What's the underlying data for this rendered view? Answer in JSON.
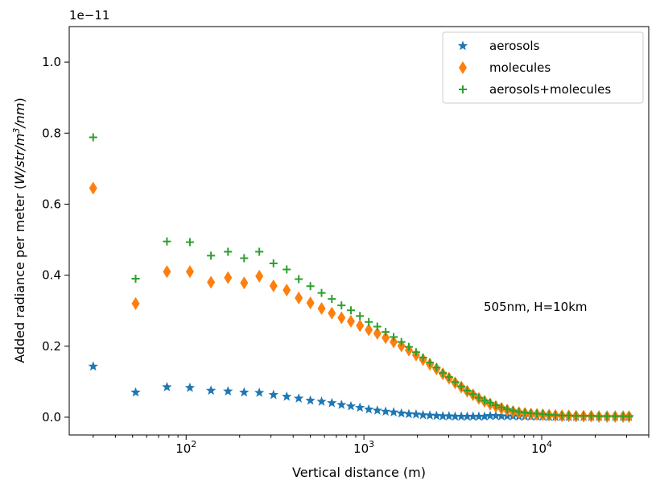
{
  "chart_data": {
    "type": "scatter",
    "xscale": "log",
    "xlabel": "Vertical distance (m)",
    "ylabel_main": "Added radiance per meter (",
    "ylabel_math": "W/str/m",
    "ylabel_exp": "3",
    "ylabel_math2": "/nm",
    "ylabel_close": ")",
    "offset_text": "1e−11",
    "annotation": "505nm, H=10km",
    "xlim": [
      22,
      40000
    ],
    "ylim": [
      -0.05,
      1.1
    ],
    "yticks": [
      0.0,
      0.2,
      0.4,
      0.6,
      0.8,
      1.0
    ],
    "ytick_labels": [
      "0.0",
      "0.2",
      "0.4",
      "0.6",
      "0.8",
      "1.0"
    ],
    "xticks": [
      100,
      1000,
      10000
    ],
    "xtick_base": [
      "10",
      "10",
      "10"
    ],
    "xtick_exp": [
      "2",
      "3",
      "4"
    ],
    "legend_position": "top-right",
    "grid": false,
    "x": [
      30,
      52,
      78,
      105,
      138,
      172,
      212,
      258,
      310,
      368,
      430,
      500,
      578,
      660,
      748,
      845,
      950,
      1065,
      1190,
      1325,
      1470,
      1625,
      1790,
      1965,
      2150,
      2350,
      2560,
      2780,
      3010,
      3260,
      3530,
      3810,
      4110,
      4430,
      4770,
      5130,
      5520,
      5940,
      6400,
      6900,
      7450,
      8050,
      8700,
      9400,
      10150,
      11000,
      11950,
      13000,
      14200,
      15600,
      17200,
      19000,
      21000,
      23300,
      25900,
      28700,
      31000
    ],
    "series": [
      {
        "name": "aerosols",
        "marker": "star",
        "color": "#1f77b4",
        "values": [
          0.143,
          0.07,
          0.085,
          0.083,
          0.075,
          0.073,
          0.07,
          0.069,
          0.063,
          0.058,
          0.053,
          0.047,
          0.044,
          0.04,
          0.035,
          0.031,
          0.027,
          0.022,
          0.019,
          0.016,
          0.014,
          0.011,
          0.009,
          0.008,
          0.006,
          0.005,
          0.004,
          0.003,
          0.003,
          0.002,
          0.002,
          0.002,
          0.002,
          0.002,
          0.002,
          0.004,
          0.004,
          0.003,
          0.003,
          0.003,
          0.002,
          0.002,
          0.002,
          0.002,
          0.002,
          0.001,
          0.001,
          0.001,
          0.001,
          0.001,
          0.001,
          0.001,
          0.001,
          0.001,
          0.001,
          0.001,
          0.001
        ]
      },
      {
        "name": "molecules",
        "marker": "thin_diamond",
        "color": "#ff7f0e",
        "values": [
          0.645,
          0.32,
          0.41,
          0.41,
          0.38,
          0.393,
          0.378,
          0.397,
          0.37,
          0.358,
          0.336,
          0.322,
          0.306,
          0.293,
          0.28,
          0.27,
          0.258,
          0.246,
          0.236,
          0.224,
          0.212,
          0.201,
          0.189,
          0.175,
          0.162,
          0.149,
          0.136,
          0.122,
          0.11,
          0.097,
          0.085,
          0.073,
          0.063,
          0.053,
          0.045,
          0.037,
          0.03,
          0.025,
          0.02,
          0.016,
          0.013,
          0.011,
          0.009,
          0.008,
          0.007,
          0.006,
          0.005,
          0.004,
          0.004,
          0.003,
          0.003,
          0.003,
          0.002,
          0.002,
          0.002,
          0.002,
          0.002
        ]
      },
      {
        "name": "aerosols+molecules",
        "marker": "plus",
        "color": "#2ca02c",
        "values": [
          0.788,
          0.39,
          0.495,
          0.493,
          0.455,
          0.466,
          0.448,
          0.466,
          0.433,
          0.416,
          0.389,
          0.369,
          0.35,
          0.333,
          0.315,
          0.301,
          0.285,
          0.268,
          0.255,
          0.24,
          0.226,
          0.212,
          0.198,
          0.183,
          0.168,
          0.154,
          0.14,
          0.125,
          0.113,
          0.099,
          0.087,
          0.075,
          0.065,
          0.055,
          0.047,
          0.041,
          0.034,
          0.028,
          0.023,
          0.019,
          0.015,
          0.013,
          0.011,
          0.01,
          0.009,
          0.007,
          0.006,
          0.005,
          0.005,
          0.004,
          0.004,
          0.004,
          0.003,
          0.003,
          0.003,
          0.003,
          0.003
        ]
      }
    ]
  }
}
